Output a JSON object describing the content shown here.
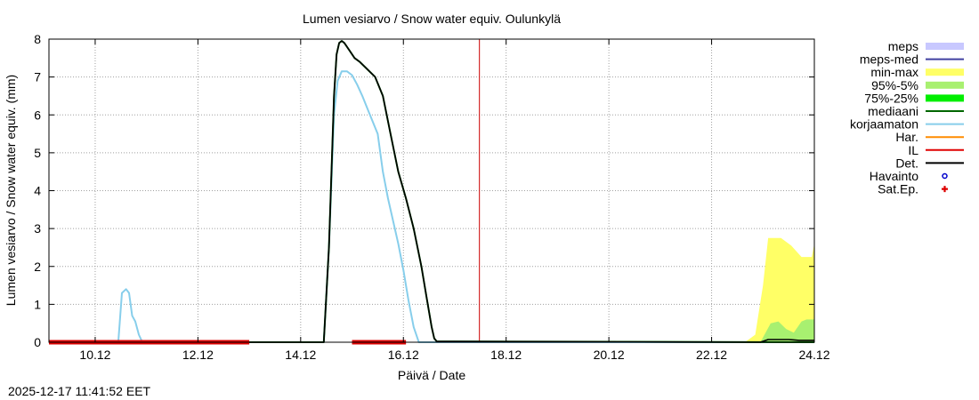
{
  "chart_data": {
    "type": "line",
    "title": "Lumen vesiarvo / Snow water equiv.  Oulunkylä",
    "xlabel": "Päivä / Date",
    "ylabel": "Lumen vesiarvo / Snow water equiv. (mm)",
    "timestamp": "2025-12-17 11:41:52 EET",
    "xlim": [
      9.1,
      24.0
    ],
    "ylim": [
      0,
      8
    ],
    "grid": true,
    "legend_position": "outside-right",
    "x_unit": "days of December 2025",
    "xticks": [
      {
        "x": 10,
        "label": "10.12"
      },
      {
        "x": 12,
        "label": "12.12"
      },
      {
        "x": 14,
        "label": "14.12"
      },
      {
        "x": 16,
        "label": "16.12"
      },
      {
        "x": 18,
        "label": "18.12"
      },
      {
        "x": 20,
        "label": "20.12"
      },
      {
        "x": 22,
        "label": "22.12"
      },
      {
        "x": 24,
        "label": "24.12"
      }
    ],
    "yticks": [
      0,
      1,
      2,
      3,
      4,
      5,
      6,
      7,
      8
    ],
    "vline": {
      "x": 17.48,
      "color": "#cc0000"
    },
    "legend": [
      {
        "label": "meps",
        "style": "fill",
        "color": "#c8c8ff"
      },
      {
        "label": "meps-med",
        "style": "line",
        "color": "#4040a0"
      },
      {
        "label": "min-max",
        "style": "fill",
        "color": "#ffff66"
      },
      {
        "label": "95%-5%",
        "style": "fill",
        "color": "#a8f070"
      },
      {
        "label": "75%-25%",
        "style": "fill",
        "color": "#00ee00"
      },
      {
        "label": "mediaani",
        "style": "line",
        "color": "#006600"
      },
      {
        "label": "korjaamaton",
        "style": "line",
        "color": "#87ceeb"
      },
      {
        "label": "Har.",
        "style": "line",
        "color": "#ff8c00"
      },
      {
        "label": "IL",
        "style": "line",
        "color": "#e00000"
      },
      {
        "label": "Det.",
        "style": "line",
        "color": "#000000"
      },
      {
        "label": "Havainto",
        "style": "circle",
        "color": "#0000cc"
      },
      {
        "label": "Sat.Ep.",
        "style": "plus",
        "color": "#dd0000"
      }
    ],
    "series": [
      {
        "name": "min-max",
        "type": "band",
        "color": "#ffff66",
        "x": [
          22.65,
          22.85,
          23.0,
          23.1,
          23.35,
          23.55,
          23.75,
          23.95,
          24.0
        ],
        "low": [
          0,
          0,
          0,
          0,
          0,
          0,
          0,
          0,
          0
        ],
        "high": [
          0,
          0.2,
          1.5,
          2.75,
          2.75,
          2.55,
          2.25,
          2.25,
          2.6
        ]
      },
      {
        "name": "95%-5%",
        "type": "band",
        "color": "#a8f070",
        "x": [
          22.95,
          23.15,
          23.3,
          23.45,
          23.6,
          23.75,
          23.85,
          24.0
        ],
        "low": [
          0,
          0,
          0,
          0,
          0,
          0,
          0,
          0
        ],
        "high": [
          0,
          0.5,
          0.55,
          0.35,
          0.25,
          0.55,
          0.6,
          0.6
        ]
      },
      {
        "name": "mediaani",
        "type": "line",
        "color": "#006600",
        "x": [
          9.1,
          14.45,
          14.55,
          14.65,
          14.7,
          14.75,
          14.8,
          14.85,
          14.95,
          15.05,
          15.15,
          15.3,
          15.45,
          15.6,
          15.75,
          15.9,
          16.05,
          16.2,
          16.35,
          16.45,
          16.55,
          16.6,
          16.65,
          24.0
        ],
        "y": [
          0,
          0,
          2.5,
          6.5,
          7.6,
          7.9,
          7.95,
          7.9,
          7.7,
          7.5,
          7.4,
          7.2,
          7.0,
          6.5,
          5.5,
          4.5,
          3.8,
          3.0,
          2.0,
          1.2,
          0.4,
          0.1,
          0.02,
          0
        ]
      },
      {
        "name": "korjaamaton",
        "type": "line",
        "color": "#87ceeb",
        "x": [
          9.1,
          10.45,
          10.52,
          10.6,
          10.66,
          10.72,
          10.78,
          10.85,
          10.92,
          14.45,
          14.55,
          14.65,
          14.72,
          14.8,
          14.9,
          15.0,
          15.1,
          15.2,
          15.35,
          15.5,
          15.6,
          15.7,
          15.8,
          15.9,
          16.0,
          16.1,
          16.2,
          16.3,
          24.0
        ],
        "y": [
          0,
          0,
          1.3,
          1.4,
          1.3,
          0.7,
          0.55,
          0.2,
          0,
          0,
          2.5,
          6.0,
          6.9,
          7.15,
          7.15,
          7.05,
          6.8,
          6.5,
          6.0,
          5.5,
          4.5,
          3.8,
          3.2,
          2.6,
          1.9,
          1.1,
          0.4,
          0,
          0
        ]
      },
      {
        "name": "Det.",
        "type": "line",
        "color": "#000000",
        "x": [
          9.1,
          14.45,
          14.55,
          14.65,
          14.7,
          14.75,
          14.8,
          14.85,
          14.95,
          15.05,
          15.15,
          15.3,
          15.45,
          15.6,
          15.75,
          15.9,
          16.05,
          16.2,
          16.35,
          16.45,
          16.55,
          16.6,
          16.65,
          22.95,
          23.1,
          23.5,
          23.7,
          24.0
        ],
        "y": [
          0,
          0,
          2.5,
          6.5,
          7.6,
          7.9,
          7.95,
          7.9,
          7.7,
          7.5,
          7.4,
          7.2,
          7.0,
          6.5,
          5.5,
          4.5,
          3.8,
          3.0,
          2.0,
          1.2,
          0.4,
          0.1,
          0.02,
          0,
          0.07,
          0.07,
          0.05,
          0.05
        ]
      },
      {
        "name": "Sat.Ep.",
        "type": "markers",
        "color": "#dd0000",
        "segments": [
          [
            9.1,
            13.0
          ],
          [
            15.0,
            16.05
          ]
        ],
        "y": 0
      }
    ]
  }
}
